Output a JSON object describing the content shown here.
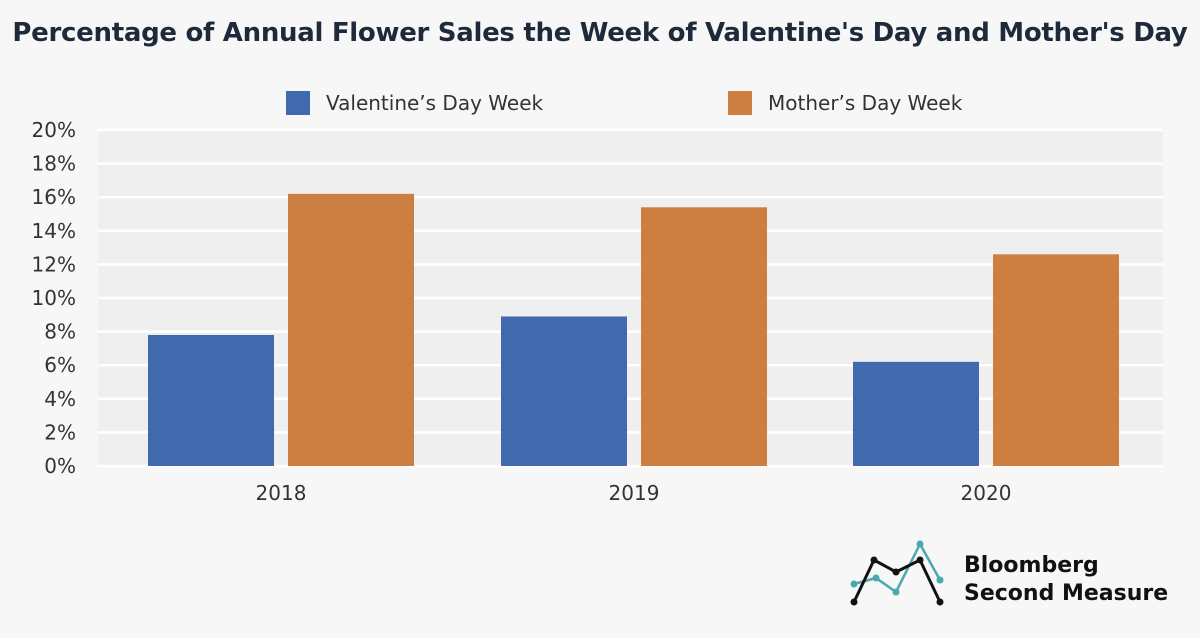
{
  "chart_data": {
    "type": "bar",
    "title": "Percentage of Annual Flower Sales the Week of Valentine's Day and Mother's Day",
    "xlabel": "",
    "ylabel": "",
    "categories": [
      "2018",
      "2019",
      "2020"
    ],
    "series": [
      {
        "name": "Valentine’s Day Week",
        "values": [
          7.8,
          8.9,
          6.2
        ],
        "color": "#4169ad"
      },
      {
        "name": "Mother’s Day Week",
        "values": [
          16.2,
          15.4,
          12.6
        ],
        "color": "#cd7f41"
      }
    ],
    "ylim": [
      0,
      20
    ],
    "yticks": [
      0,
      2,
      4,
      6,
      8,
      10,
      12,
      14,
      16,
      18,
      20
    ],
    "ytick_labels": [
      "0%",
      "2%",
      "4%",
      "6%",
      "8%",
      "10%",
      "12%",
      "14%",
      "16%",
      "18%",
      "20%"
    ],
    "grid": true,
    "legend_position": "top-center",
    "plot_background": "#efefef",
    "grid_color": "#ffffff"
  },
  "brand": {
    "line1": "Bloomberg",
    "line2": "Second Measure",
    "logo_icon": "line-chart-logo-icon",
    "colors": [
      "#111111",
      "#4aa8b0"
    ]
  }
}
